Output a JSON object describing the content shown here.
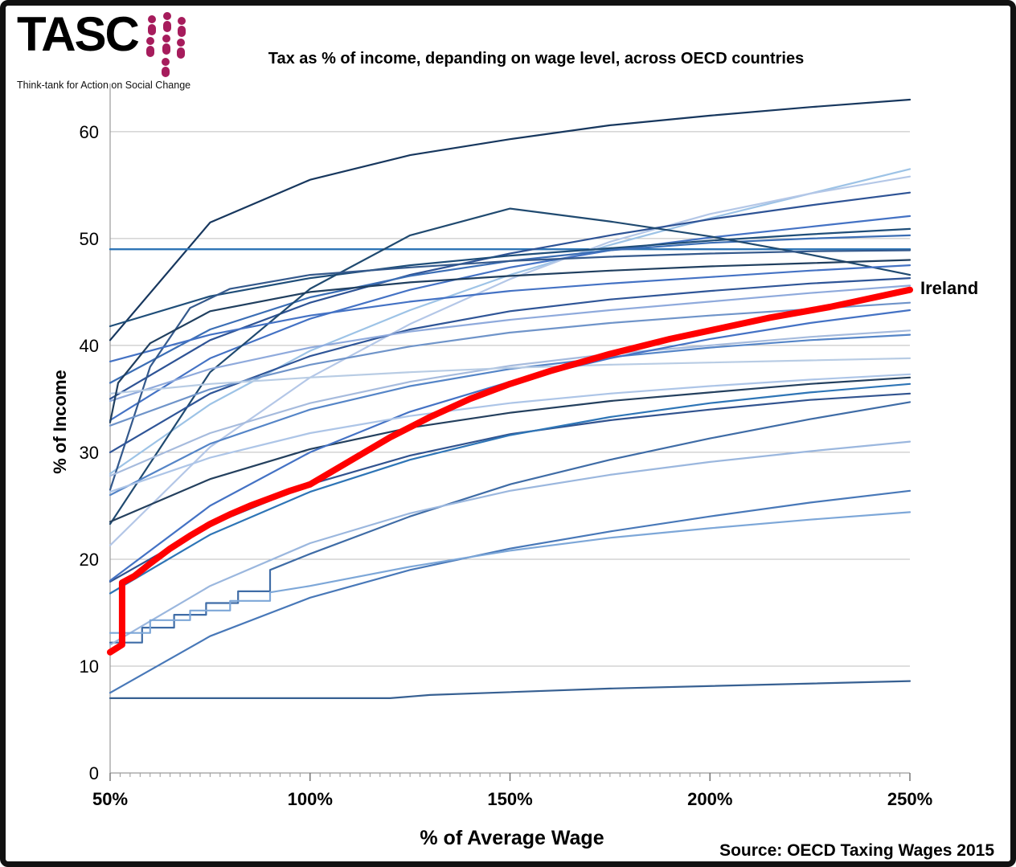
{
  "logo": {
    "text": "TASC",
    "subtitle": "Think-tank for Action on Social Change",
    "accent_color": "#a61c5c"
  },
  "chart_data": {
    "type": "line",
    "title": "Tax as % of income, depanding on wage level, across OECD countries",
    "xlabel": "% of Average Wage",
    "ylabel": "% of Income",
    "source": "Source: OECD Taxing Wages 2015",
    "legend": "none",
    "grid": "horizontal-only",
    "xlim": [
      50,
      250
    ],
    "ylim": [
      0,
      64.5
    ],
    "x_tick_values": [
      50,
      100,
      150,
      200,
      250
    ],
    "x_tick_labels": [
      "50%",
      "100%",
      "150%",
      "200%",
      "250%"
    ],
    "x_minor_tick_step": 2.5,
    "y_ticks": [
      0,
      10,
      20,
      30,
      40,
      50,
      60
    ],
    "annotation": {
      "text": "Ireland",
      "x": 250,
      "y": 45.2
    },
    "highlight": {
      "name": "Ireland",
      "color": "#ff0000"
    },
    "x": [
      50,
      75,
      100,
      125,
      150,
      175,
      200,
      225,
      250
    ],
    "series": [
      {
        "name": "oecd-line-01",
        "color": "#17375e",
        "y": [
          40.5,
          51.5,
          55.5,
          57.8,
          59.3,
          60.6,
          61.5,
          62.3,
          63.0
        ]
      },
      {
        "name": "oecd-line-02",
        "color": "#2e75b6",
        "width": 2.4,
        "x": [
          50,
          250
        ],
        "y": [
          49,
          49
        ]
      },
      {
        "name": "oecd-line-03",
        "color": "#9dc3e6",
        "y": [
          28,
          34.5,
          39.5,
          43.3,
          46.6,
          49.4,
          51.9,
          54.2,
          56.5
        ]
      },
      {
        "name": "oecd-line-04",
        "color": "#b4c7e7",
        "y": [
          21.3,
          30.5,
          37.0,
          42.0,
          46.2,
          49.7,
          52.3,
          54.2,
          55.8
        ]
      },
      {
        "name": "oecd-line-05",
        "color": "#2e5395",
        "y": [
          35,
          40.5,
          44,
          46.6,
          48.6,
          50.3,
          51.8,
          53.1,
          54.3
        ]
      },
      {
        "name": "oecd-line-06",
        "color": "#4472c4",
        "y": [
          33,
          38.8,
          42.5,
          45.2,
          47.3,
          48.9,
          50.1,
          51.1,
          52.1
        ]
      },
      {
        "name": "oecd-line-07",
        "color": "#1f4e79",
        "y": [
          41.8,
          44.6,
          46.3,
          47.5,
          48.4,
          49.1,
          49.8,
          50.4,
          50.9
        ]
      },
      {
        "name": "oecd-line-08",
        "color": "#3b6eb5",
        "y": [
          36.5,
          41.5,
          44.5,
          46.5,
          47.9,
          48.9,
          49.6,
          50.0,
          50.3
        ]
      },
      {
        "name": "oecd-line-09",
        "color": "#204a70",
        "y": [
          23.3,
          37.5,
          45.3,
          50.3,
          52.8,
          51.6,
          50.2,
          48.5,
          46.6
        ]
      },
      {
        "name": "oecd-line-10",
        "color": "#34598c",
        "x": [
          50,
          60,
          70,
          80,
          100,
          125,
          150,
          175,
          200,
          225,
          250
        ],
        "y": [
          26.5,
          38,
          43.5,
          45.3,
          46.6,
          47.3,
          47.9,
          48.3,
          48.6,
          48.8,
          48.9
        ]
      },
      {
        "name": "oecd-line-11",
        "color": "#4472c4",
        "y": [
          38.5,
          41,
          42.8,
          44.1,
          45.1,
          45.8,
          46.4,
          47.0,
          47.5
        ]
      },
      {
        "name": "oecd-line-12",
        "color": "#2f5597",
        "y": [
          30,
          35.5,
          39,
          41.5,
          43.2,
          44.3,
          45.1,
          45.8,
          46.3
        ]
      },
      {
        "name": "oecd-line-13",
        "color": "#8faadc",
        "y": [
          34.8,
          37.8,
          39.8,
          41.3,
          42.4,
          43.3,
          44.1,
          44.9,
          45.6
        ]
      },
      {
        "name": "oecd-line-14",
        "color": "#6f94c9",
        "y": [
          32.5,
          35.9,
          38.2,
          39.9,
          41.2,
          42.1,
          42.8,
          43.4,
          44.0
        ]
      },
      {
        "name": "oecd-line-15",
        "color": "#a6bbdd",
        "y": [
          27.8,
          31.8,
          34.6,
          36.6,
          38.1,
          39.2,
          40.0,
          40.8,
          41.4
        ]
      },
      {
        "name": "oecd-line-16",
        "color": "#5585c7",
        "y": [
          26,
          30.8,
          34,
          36.2,
          37.8,
          38.9,
          39.8,
          40.5,
          41.0
        ]
      },
      {
        "name": "oecd-line-17",
        "color": "#b8cce4",
        "y": [
          35.5,
          36.4,
          37.0,
          37.5,
          37.9,
          38.2,
          38.4,
          38.6,
          38.8
        ]
      },
      {
        "name": "oecd-line-18",
        "color": "#24405e",
        "y": [
          23.5,
          27.5,
          30.3,
          32.3,
          33.7,
          34.8,
          35.6,
          36.4,
          37.0
        ]
      },
      {
        "name": "oecd-line-19",
        "color": "#3f6ca6",
        "x": [
          50,
          58,
          58,
          66,
          66,
          74,
          74,
          82,
          82,
          90,
          90,
          100,
          125,
          150,
          175,
          200,
          225,
          250
        ],
        "y": [
          12.2,
          12.2,
          13.6,
          13.6,
          14.8,
          14.8,
          15.9,
          15.9,
          17.0,
          17.0,
          19.0,
          20.5,
          24.0,
          27.0,
          29.3,
          31.3,
          33.1,
          34.7
        ]
      },
      {
        "name": "oecd-line-20",
        "color": "#31538f",
        "y": [
          17.9,
          23.2,
          27.0,
          29.7,
          31.7,
          33.0,
          34.0,
          34.9,
          35.5
        ]
      },
      {
        "name": "oecd-line-21",
        "color": "#9bb7de",
        "y": [
          12,
          17.5,
          21.5,
          24.3,
          26.4,
          27.9,
          29.1,
          30.1,
          31.0
        ]
      },
      {
        "name": "oecd-line-22",
        "color": "#4878b8",
        "y": [
          7.5,
          12.8,
          16.4,
          19.0,
          21.0,
          22.6,
          24.0,
          25.3,
          26.4
        ]
      },
      {
        "name": "oecd-line-23",
        "color": "#7da7d8",
        "x": [
          50,
          60,
          60,
          70,
          70,
          80,
          80,
          90,
          90,
          100,
          125,
          150,
          175,
          200,
          225,
          250
        ],
        "y": [
          13.1,
          13.1,
          14.3,
          14.3,
          15.2,
          15.2,
          16.1,
          16.1,
          16.9,
          17.5,
          19.3,
          20.8,
          22.0,
          22.9,
          23.7,
          24.4
        ]
      },
      {
        "name": "oecd-line-24",
        "color": "#376092",
        "x": [
          50,
          120,
          130,
          175,
          250
        ],
        "y": [
          7.0,
          7.0,
          7.3,
          7.9,
          8.6
        ]
      },
      {
        "name": "oecd-line-25",
        "color": "#4472c4",
        "y": [
          18,
          25,
          30,
          33.8,
          36.6,
          38.8,
          40.6,
          42.1,
          43.3
        ]
      },
      {
        "name": "oecd-line-26",
        "color": "#2e75b6",
        "y": [
          16.8,
          22.3,
          26.3,
          29.3,
          31.6,
          33.3,
          34.6,
          35.6,
          36.4
        ]
      },
      {
        "name": "oecd-line-27",
        "color": "#adc5e7",
        "y": [
          26.3,
          29.5,
          31.8,
          33.4,
          34.6,
          35.5,
          36.2,
          36.8,
          37.3
        ]
      },
      {
        "name": "oecd-line-28",
        "color": "#203f5f",
        "x": [
          50,
          52,
          60,
          75,
          100,
          125,
          150,
          175,
          200,
          225,
          250
        ],
        "y": [
          32.8,
          36.5,
          40.2,
          43.2,
          45.0,
          45.9,
          46.5,
          47.0,
          47.4,
          47.7,
          48.0
        ]
      },
      {
        "name": "Ireland",
        "color": "#ff0000",
        "width": 8,
        "x": [
          50,
          53,
          53,
          56,
          60,
          65,
          70,
          75,
          80,
          85,
          90,
          95,
          100,
          110,
          120,
          130,
          140,
          150,
          160,
          175,
          190,
          200,
          215,
          230,
          250
        ],
        "y": [
          11.3,
          12.0,
          17.8,
          18.4,
          19.6,
          21.0,
          22.2,
          23.3,
          24.2,
          25.0,
          25.7,
          26.4,
          27.0,
          29.2,
          31.4,
          33.3,
          35.0,
          36.4,
          37.6,
          39.2,
          40.6,
          41.4,
          42.6,
          43.6,
          45.2
        ]
      }
    ]
  }
}
